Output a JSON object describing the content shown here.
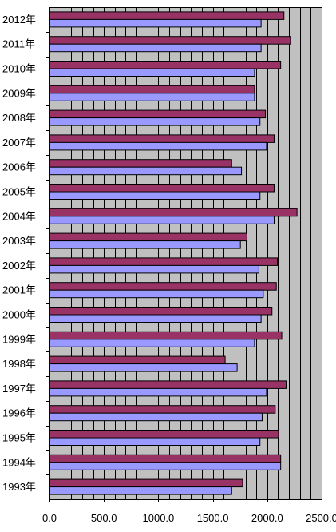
{
  "chart_data": {
    "type": "bar",
    "orientation": "horizontal",
    "categories": [
      "2012年",
      "2011年",
      "2010年",
      "2009年",
      "2008年",
      "2007年",
      "2006年",
      "2005年",
      "2004年",
      "2003年",
      "2002年",
      "2001年",
      "2000年",
      "1999年",
      "1998年",
      "1997年",
      "1996年",
      "1995年",
      "1994年",
      "1993年"
    ],
    "series": [
      {
        "values": [
          2150,
          2210,
          2120,
          1880,
          1980,
          2060,
          1670,
          2060,
          2270,
          1810,
          2090,
          2080,
          2040,
          2130,
          1610,
          2170,
          2070,
          2100,
          2120,
          1770
        ]
      },
      {
        "values": [
          1940,
          1940,
          1880,
          1880,
          1930,
          1990,
          1760,
          1930,
          2060,
          1750,
          1920,
          1960,
          1940,
          1880,
          1720,
          1990,
          1950,
          1930,
          2120,
          1670
        ]
      }
    ],
    "series_colors": [
      "#993366",
      "#9999ff"
    ],
    "xlim": [
      0,
      2500
    ],
    "xticks": [
      "0.0",
      "500.0",
      "1000.0",
      "1500.0",
      "2000.0",
      "2500.0"
    ],
    "minor_step": 100,
    "grid": true,
    "plot_background": "#c0c0c0",
    "title": "",
    "xlabel": "",
    "ylabel": ""
  }
}
